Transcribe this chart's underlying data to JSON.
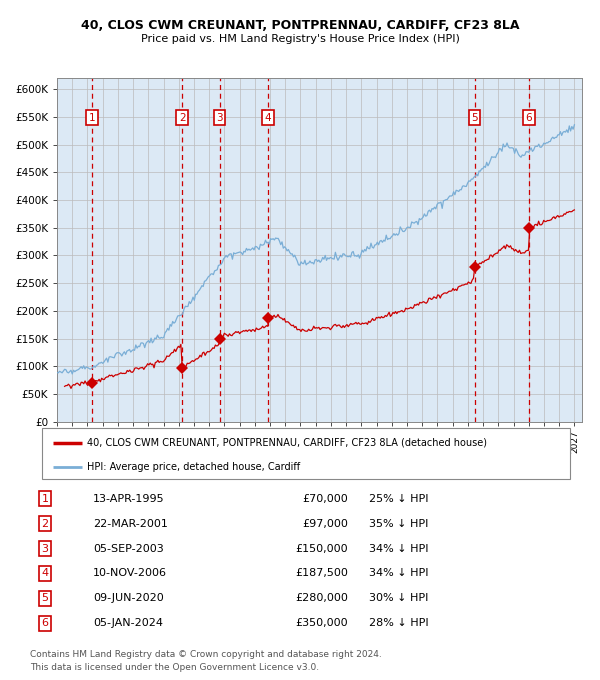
{
  "title_line1": "40, CLOS CWM CREUNANT, PONTPRENNAU, CARDIFF, CF23 8LA",
  "title_line2": "Price paid vs. HM Land Registry's House Price Index (HPI)",
  "ylim": [
    0,
    620000
  ],
  "xlim_start": 1993.0,
  "xlim_end": 2027.5,
  "yticks": [
    0,
    50000,
    100000,
    150000,
    200000,
    250000,
    300000,
    350000,
    400000,
    450000,
    500000,
    550000,
    600000
  ],
  "ytick_labels": [
    "£0",
    "£50K",
    "£100K",
    "£150K",
    "£200K",
    "£250K",
    "£300K",
    "£350K",
    "£400K",
    "£450K",
    "£500K",
    "£550K",
    "£600K"
  ],
  "bg_color": "#dce9f5",
  "grid_color": "#bbbbbb",
  "hpi_color": "#7aaed6",
  "price_color": "#cc0000",
  "sale_marker_color": "#cc0000",
  "vline_color": "#cc0000",
  "transaction_label_color": "#cc0000",
  "transactions": [
    {
      "num": 1,
      "date_str": "13-APR-1995",
      "year": 1995.28,
      "price": 70000,
      "pct": "25%"
    },
    {
      "num": 2,
      "date_str": "22-MAR-2001",
      "year": 2001.22,
      "price": 97000,
      "pct": "35%"
    },
    {
      "num": 3,
      "date_str": "05-SEP-2003",
      "year": 2003.68,
      "price": 150000,
      "pct": "34%"
    },
    {
      "num": 4,
      "date_str": "10-NOV-2006",
      "year": 2006.86,
      "price": 187500,
      "pct": "34%"
    },
    {
      "num": 5,
      "date_str": "09-JUN-2020",
      "year": 2020.44,
      "price": 280000,
      "pct": "30%"
    },
    {
      "num": 6,
      "date_str": "05-JAN-2024",
      "year": 2024.01,
      "price": 350000,
      "pct": "28%"
    }
  ],
  "legend_line1": "40, CLOS CWM CREUNANT, PONTPRENNAU, CARDIFF, CF23 8LA (detached house)",
  "legend_line2": "HPI: Average price, detached house, Cardiff",
  "footer_line1": "Contains HM Land Registry data © Crown copyright and database right 2024.",
  "footer_line2": "This data is licensed under the Open Government Licence v3.0.",
  "table_rows": [
    {
      "num": 1,
      "date": "13-APR-1995",
      "price": "£70,000",
      "pct": "25% ↓ HPI"
    },
    {
      "num": 2,
      "date": "22-MAR-2001",
      "price": "£97,000",
      "pct": "35% ↓ HPI"
    },
    {
      "num": 3,
      "date": "05-SEP-2003",
      "price": "£150,000",
      "pct": "34% ↓ HPI"
    },
    {
      "num": 4,
      "date": "10-NOV-2006",
      "price": "£187,500",
      "pct": "34% ↓ HPI"
    },
    {
      "num": 5,
      "date": "09-JUN-2020",
      "price": "£280,000",
      "pct": "30% ↓ HPI"
    },
    {
      "num": 6,
      "date": "05-JAN-2024",
      "price": "£350,000",
      "pct": "28% ↓ HPI"
    }
  ]
}
